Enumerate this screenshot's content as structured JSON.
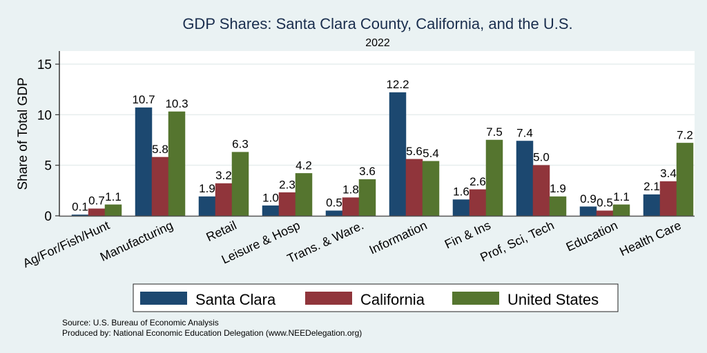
{
  "chart_data": {
    "type": "bar",
    "title": "GDP Shares: Santa Clara County, California, and the U.S.",
    "subtitle": "2022",
    "xlabel": "",
    "ylabel": "Share of Total GDP",
    "ylim": [
      0,
      16.3
    ],
    "yticks": [
      0,
      5,
      10,
      15
    ],
    "grid": true,
    "legend_position": "bottom",
    "categories": [
      "Ag/For/Fish/Hunt",
      "Manufacturing",
      "Retail",
      "Leisure & Hosp",
      "Trans. & Ware.",
      "Information",
      "Fin & Ins",
      "Prof, Sci, Tech",
      "Education",
      "Health Care"
    ],
    "series": [
      {
        "name": "Santa Clara",
        "color": "#1c4870",
        "values": [
          0.1,
          10.7,
          1.9,
          1.0,
          0.5,
          12.2,
          1.6,
          7.4,
          0.9,
          2.1
        ]
      },
      {
        "name": "California",
        "color": "#90353b",
        "values": [
          0.7,
          5.8,
          3.2,
          2.3,
          1.8,
          5.6,
          2.6,
          5.0,
          0.5,
          3.4
        ]
      },
      {
        "name": "United States",
        "color": "#55752f",
        "values": [
          1.1,
          10.3,
          6.3,
          4.2,
          3.6,
          5.4,
          7.5,
          1.9,
          1.1,
          7.2
        ]
      }
    ],
    "data_labels": true,
    "notes": [
      "Source: U.S. Bureau of Economic Analysis",
      "Produced by: National Economic Education Delegation (www.NEEDelegation.org)"
    ]
  }
}
